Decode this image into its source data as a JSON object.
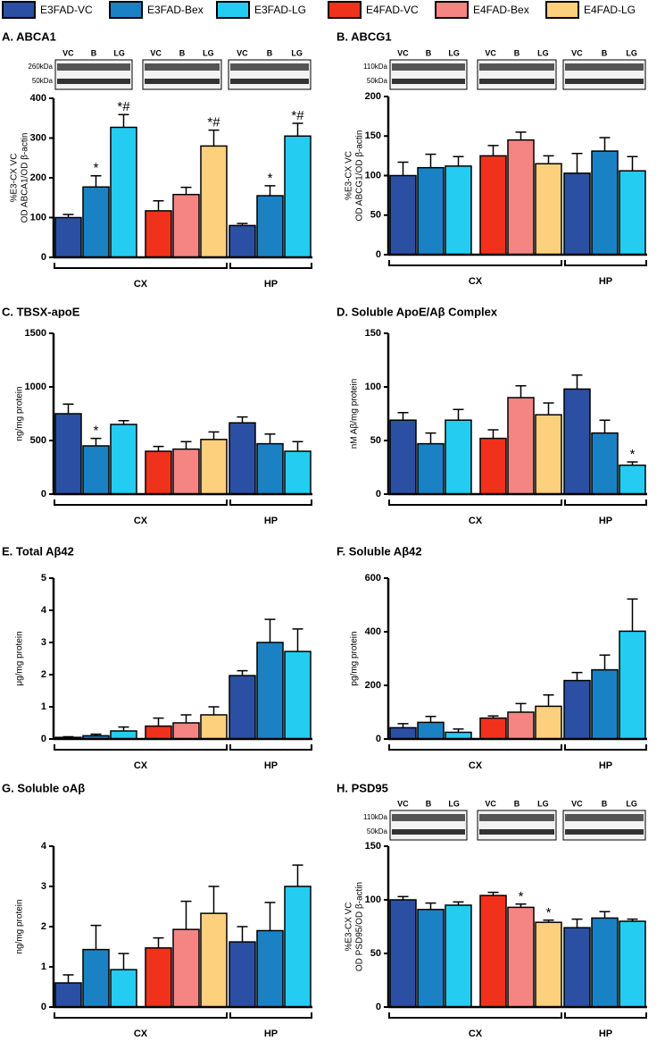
{
  "legend": [
    {
      "name": "E3FAD-VC",
      "color": "#2b4fa2"
    },
    {
      "name": "E3FAD-Bex",
      "color": "#1a82c4"
    },
    {
      "name": "E3FAD-LG",
      "color": "#24ccf2"
    },
    {
      "name": "E4FAD-VC",
      "color": "#f0321c"
    },
    {
      "name": "E4FAD-Bex",
      "color": "#f58583"
    },
    {
      "name": "E4FAD-LG",
      "color": "#fcd07c"
    }
  ],
  "chart_data": [
    {
      "type": "bar",
      "title": "A. ABCA1",
      "ylabel": [
        "%E3-CX VC",
        "OD ABCA1/OD β-actin"
      ],
      "groups": [
        "CX",
        "HP"
      ],
      "blot": {
        "lanes": [
          "VC",
          "B",
          "LG"
        ],
        "markers": [
          "260kDa",
          "50kDa"
        ]
      },
      "ylim": [
        0,
        400
      ],
      "yticks": [
        0,
        100,
        200,
        300,
        400
      ],
      "series": [
        {
          "values": [
            100,
            80
          ],
          "errors": [
            8,
            5
          ]
        },
        {
          "values": [
            177,
            155
          ],
          "errors": [
            28,
            25
          ],
          "annotations": [
            "*",
            "*"
          ]
        },
        {
          "values": [
            327,
            305
          ],
          "errors": [
            32,
            32
          ],
          "annotations": [
            "*#",
            "*#"
          ]
        },
        {
          "values": [
            117,
            null
          ],
          "errors": [
            25,
            null
          ]
        },
        {
          "values": [
            158,
            null
          ],
          "errors": [
            18,
            null
          ]
        },
        {
          "values": [
            280,
            null
          ],
          "errors": [
            40,
            null
          ],
          "annotations": [
            "*#",
            null
          ]
        }
      ]
    },
    {
      "type": "bar",
      "title": "B. ABCG1",
      "ylabel": [
        "%E3-CX VC",
        "OD ABCG1/OD β-actin"
      ],
      "groups": [
        "CX",
        "HP"
      ],
      "blot": {
        "lanes": [
          "VC",
          "B",
          "LG"
        ],
        "markers": [
          "110kDa",
          "50kDa"
        ]
      },
      "ylim": [
        0,
        200
      ],
      "yticks": [
        0,
        50,
        100,
        150,
        200
      ],
      "series": [
        {
          "values": [
            100,
            103
          ],
          "errors": [
            17,
            25
          ]
        },
        {
          "values": [
            110,
            131
          ],
          "errors": [
            17,
            17
          ]
        },
        {
          "values": [
            112,
            106
          ],
          "errors": [
            12,
            18
          ]
        },
        {
          "values": [
            125,
            null
          ],
          "errors": [
            13,
            null
          ]
        },
        {
          "values": [
            145,
            null
          ],
          "errors": [
            10,
            null
          ]
        },
        {
          "values": [
            115,
            null
          ],
          "errors": [
            10,
            null
          ]
        }
      ]
    },
    {
      "type": "bar",
      "title": "C. TBSX-apoE",
      "ylabel": [
        "ng/mg protein"
      ],
      "groups": [
        "CX",
        "HP"
      ],
      "ylim": [
        0,
        1500
      ],
      "yticks": [
        0,
        500,
        1000,
        1500
      ],
      "series": [
        {
          "values": [
            750,
            665
          ],
          "errors": [
            90,
            55
          ]
        },
        {
          "values": [
            450,
            470
          ],
          "errors": [
            70,
            90
          ],
          "annotations": [
            "*",
            null
          ]
        },
        {
          "values": [
            650,
            400
          ],
          "errors": [
            35,
            90
          ]
        },
        {
          "values": [
            400,
            null
          ],
          "errors": [
            45,
            null
          ]
        },
        {
          "values": [
            420,
            null
          ],
          "errors": [
            70,
            null
          ]
        },
        {
          "values": [
            510,
            null
          ],
          "errors": [
            70,
            null
          ]
        }
      ]
    },
    {
      "type": "bar",
      "title": "D. Soluble ApoE/Aβ Complex",
      "ylabel": [
        "nM Aβ/mg protein"
      ],
      "groups": [
        "CX",
        "HP"
      ],
      "ylim": [
        0,
        150
      ],
      "yticks": [
        0,
        50,
        100,
        150
      ],
      "series": [
        {
          "values": [
            69,
            98
          ],
          "errors": [
            7,
            13
          ]
        },
        {
          "values": [
            47,
            57
          ],
          "errors": [
            10,
            12
          ]
        },
        {
          "values": [
            69,
            27
          ],
          "errors": [
            10,
            3
          ],
          "annotations": [
            null,
            "*"
          ]
        },
        {
          "values": [
            52,
            null
          ],
          "errors": [
            8,
            null
          ]
        },
        {
          "values": [
            90,
            null
          ],
          "errors": [
            11,
            null
          ]
        },
        {
          "values": [
            74,
            null
          ],
          "errors": [
            11,
            null
          ]
        }
      ]
    },
    {
      "type": "bar",
      "title": "E. Total Aβ42",
      "ylabel": [
        "μg/mg protein"
      ],
      "groups": [
        "CX",
        "HP"
      ],
      "ylim": [
        0,
        5
      ],
      "yticks": [
        0,
        1,
        2,
        3,
        4,
        5
      ],
      "series": [
        {
          "values": [
            0.05,
            1.97
          ],
          "errors": [
            0.02,
            0.15
          ]
        },
        {
          "values": [
            0.1,
            3.0
          ],
          "errors": [
            0.05,
            0.72
          ]
        },
        {
          "values": [
            0.25,
            2.72
          ],
          "errors": [
            0.12,
            0.7
          ]
        },
        {
          "values": [
            0.4,
            null
          ],
          "errors": [
            0.25,
            null
          ]
        },
        {
          "values": [
            0.5,
            null
          ],
          "errors": [
            0.25,
            null
          ]
        },
        {
          "values": [
            0.75,
            null
          ],
          "errors": [
            0.25,
            null
          ]
        }
      ]
    },
    {
      "type": "bar",
      "title": "F. Soluble Aβ42",
      "ylabel": [
        "pg/mg protein"
      ],
      "groups": [
        "CX",
        "HP"
      ],
      "ylim": [
        0,
        600
      ],
      "yticks": [
        0,
        200,
        400,
        600
      ],
      "series": [
        {
          "values": [
            42,
            218
          ],
          "errors": [
            15,
            30
          ]
        },
        {
          "values": [
            62,
            258
          ],
          "errors": [
            22,
            55
          ]
        },
        {
          "values": [
            25,
            402
          ],
          "errors": [
            12,
            120
          ]
        },
        {
          "values": [
            78,
            null
          ],
          "errors": [
            8,
            null
          ]
        },
        {
          "values": [
            100,
            null
          ],
          "errors": [
            32,
            null
          ]
        },
        {
          "values": [
            122,
            null
          ],
          "errors": [
            42,
            null
          ]
        }
      ]
    },
    {
      "type": "bar",
      "title": "G. Soluble oAβ",
      "ylabel": [
        "ng/mg protein"
      ],
      "groups": [
        "CX",
        "HP"
      ],
      "ylim": [
        0,
        4
      ],
      "yticks": [
        0,
        1,
        2,
        3,
        4
      ],
      "series": [
        {
          "values": [
            0.6,
            1.62
          ],
          "errors": [
            0.2,
            0.38
          ]
        },
        {
          "values": [
            1.43,
            1.9
          ],
          "errors": [
            0.6,
            0.7
          ]
        },
        {
          "values": [
            0.93,
            3.0
          ],
          "errors": [
            0.4,
            0.53
          ]
        },
        {
          "values": [
            1.47,
            null
          ],
          "errors": [
            0.25,
            null
          ]
        },
        {
          "values": [
            1.93,
            null
          ],
          "errors": [
            0.7,
            null
          ]
        },
        {
          "values": [
            2.33,
            null
          ],
          "errors": [
            0.67,
            null
          ]
        }
      ]
    },
    {
      "type": "bar",
      "title": "H. PSD95",
      "ylabel": [
        "%E3-CX VC",
        "OD PSD95/OD β-actin"
      ],
      "groups": [
        "CX",
        "HP"
      ],
      "blot": {
        "lanes": [
          "VC",
          "B",
          "LG"
        ],
        "markers": [
          "110kDa",
          "50kDa"
        ]
      },
      "ylim": [
        0,
        150
      ],
      "yticks": [
        0,
        50,
        100,
        150
      ],
      "series": [
        {
          "values": [
            100,
            74
          ],
          "errors": [
            3,
            8
          ]
        },
        {
          "values": [
            91,
            83
          ],
          "errors": [
            6,
            6
          ]
        },
        {
          "values": [
            95,
            80
          ],
          "errors": [
            3,
            2
          ]
        },
        {
          "values": [
            104,
            null
          ],
          "errors": [
            3,
            null
          ]
        },
        {
          "values": [
            93,
            null
          ],
          "errors": [
            3,
            null
          ],
          "annotations": [
            "*",
            null
          ]
        },
        {
          "values": [
            79,
            null
          ],
          "errors": [
            2,
            null
          ],
          "annotations": [
            "*",
            null
          ]
        }
      ]
    }
  ]
}
